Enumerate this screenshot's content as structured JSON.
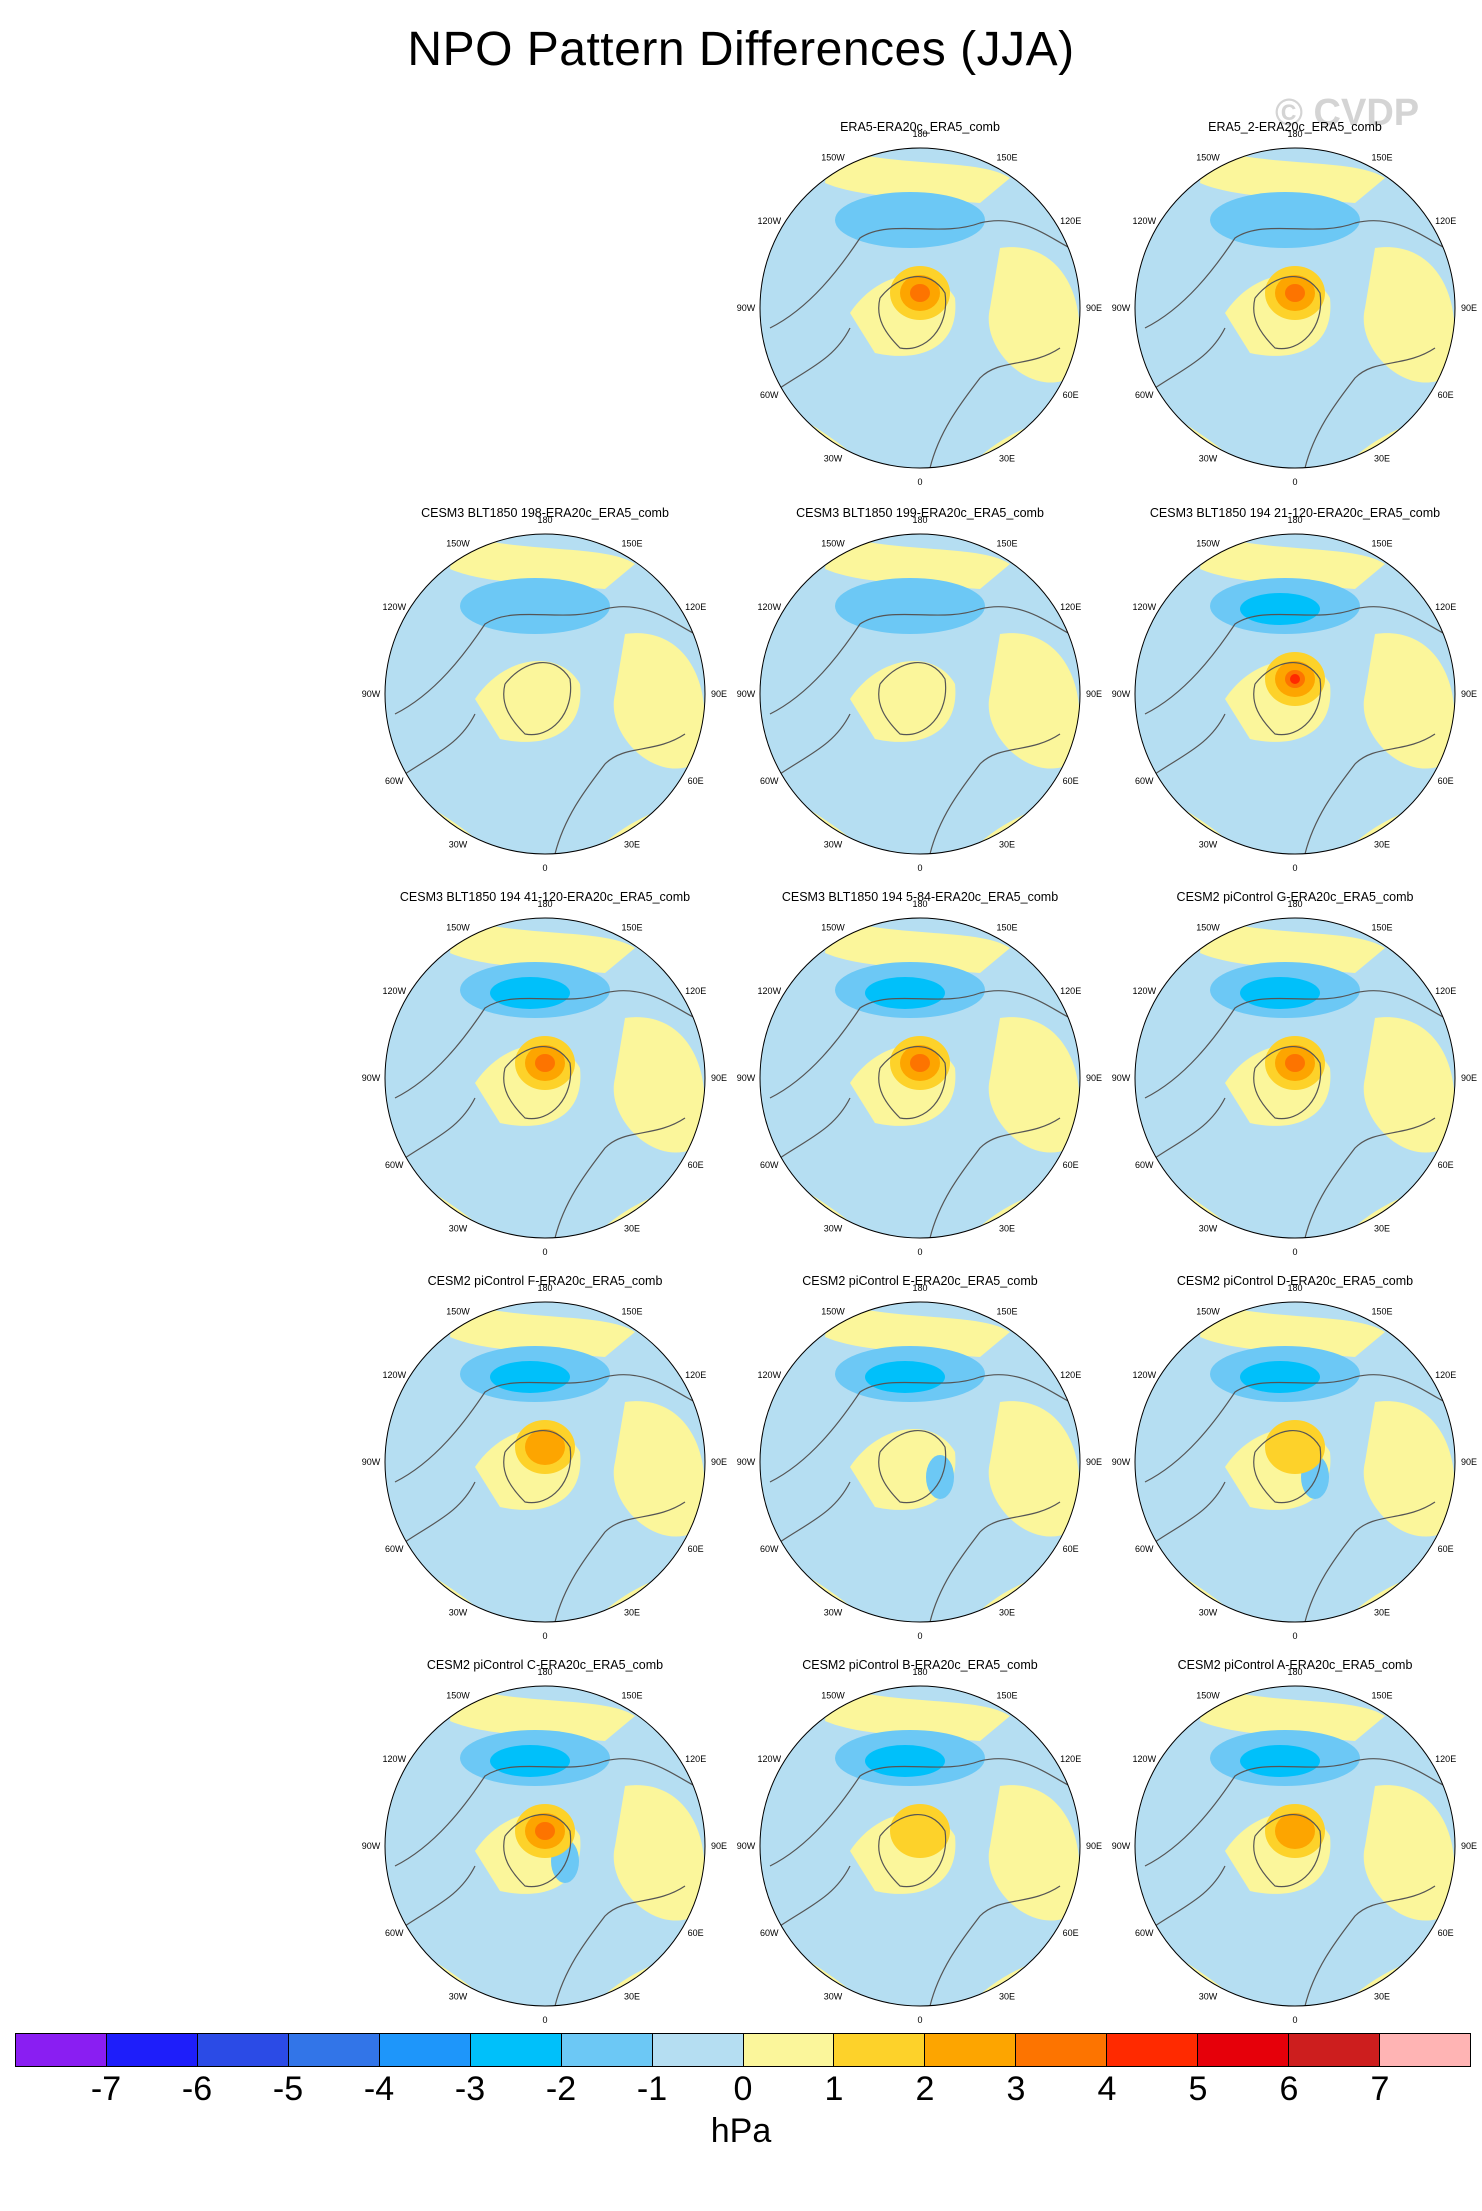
{
  "title": "NPO Pattern Differences (JJA)",
  "watermark": "© CVDP",
  "lon_labels": {
    "l180": "180",
    "l150w": "150W",
    "l150e": "150E",
    "l120w": "120W",
    "l120e": "120E",
    "l90w": "90W",
    "l90e": "90E",
    "l60w": "60W",
    "l60e": "60E",
    "l30w": "30W",
    "l30e": "30E",
    "l0": "0"
  },
  "panels": [
    {
      "title": "ERA5-ERA20c_ERA5_comb",
      "center_hpa": 3,
      "low_hpa": -2,
      "low2_hpa": null
    },
    {
      "title": "ERA5_2-ERA20c_ERA5_comb",
      "center_hpa": 3,
      "low_hpa": -2,
      "low2_hpa": null
    },
    {
      "title": "CESM3 BLT1850 198-ERA20c_ERA5_comb",
      "center_hpa": 0,
      "low_hpa": -2,
      "low2_hpa": null
    },
    {
      "title": "CESM3 BLT1850 199-ERA20c_ERA5_comb",
      "center_hpa": 0,
      "low_hpa": -2,
      "low2_hpa": null
    },
    {
      "title": "CESM3 BLT1850 194 21-120-ERA20c_ERA5_comb",
      "center_hpa": 4,
      "low_hpa": -3,
      "low2_hpa": null
    },
    {
      "title": "CESM3 BLT1850 194 41-120-ERA20c_ERA5_comb",
      "center_hpa": 3,
      "low_hpa": -3,
      "low2_hpa": null
    },
    {
      "title": "CESM3 BLT1850 194 5-84-ERA20c_ERA5_comb",
      "center_hpa": 3,
      "low_hpa": -3,
      "low2_hpa": null
    },
    {
      "title": "CESM2 piControl G-ERA20c_ERA5_comb",
      "center_hpa": 3,
      "low_hpa": -3,
      "low2_hpa": null
    },
    {
      "title": "CESM2 piControl F-ERA20c_ERA5_comb",
      "center_hpa": 2,
      "low_hpa": -3,
      "low2_hpa": null
    },
    {
      "title": "CESM2 piControl E-ERA20c_ERA5_comb",
      "center_hpa": 0,
      "low_hpa": -3,
      "low2_hpa": -2
    },
    {
      "title": "CESM2 piControl D-ERA20c_ERA5_comb",
      "center_hpa": 1,
      "low_hpa": -3,
      "low2_hpa": -2
    },
    {
      "title": "CESM2 piControl C-ERA20c_ERA5_comb",
      "center_hpa": 3,
      "low_hpa": -3,
      "low2_hpa": -2
    },
    {
      "title": "CESM2 piControl B-ERA20c_ERA5_comb",
      "center_hpa": 1,
      "low_hpa": -3,
      "low2_hpa": null
    },
    {
      "title": "CESM2 piControl A-ERA20c_ERA5_comb",
      "center_hpa": 2,
      "low_hpa": -3,
      "low2_hpa": null
    }
  ],
  "colorbar": {
    "colors": [
      "#8a1ef2",
      "#1e1efa",
      "#2b4be6",
      "#3275e8",
      "#1e96fa",
      "#00c0fa",
      "#6cc8f5",
      "#b5def2",
      "#fbf69b",
      "#fdd22a",
      "#fda500",
      "#fd7400",
      "#ff2a00",
      "#e6000a",
      "#cd1e1e",
      "#ffb4b4"
    ],
    "labels": [
      "-7",
      "-6",
      "-5",
      "-4",
      "-3",
      "-2",
      "-1",
      "0",
      "1",
      "2",
      "3",
      "4",
      "5",
      "6",
      "7"
    ],
    "units": "hPa"
  }
}
